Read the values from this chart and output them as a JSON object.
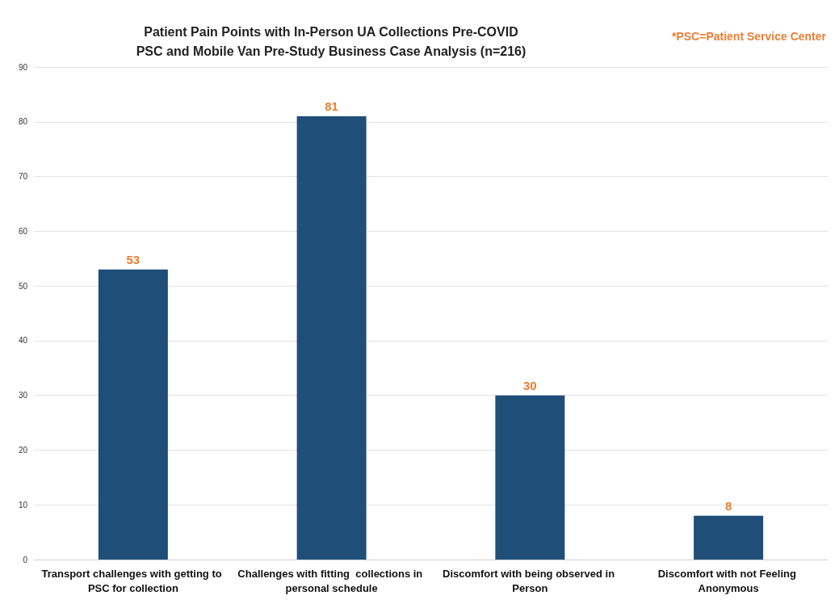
{
  "chart_data": {
    "type": "bar",
    "title": "Patient Pain Points with In-Person UA Collections Pre-COVID\nPSC and Mobile Van Pre-Study Business Case Analysis (n=216)",
    "annotations": [
      "*PSC=Patient Service Center"
    ],
    "categories": [
      "Transport challenges with getting to PSC for collection",
      "Challenges with fitting  collections in personal schedule",
      "Discomfort with being observed in Person",
      "Discomfort with not Feeling Anonymous"
    ],
    "values": [
      53,
      81,
      30,
      8
    ],
    "color": "#1f4e79",
    "ylim": [
      0,
      90
    ],
    "yticks": [
      0,
      10,
      20,
      30,
      40,
      50,
      60,
      70,
      80,
      90
    ],
    "grid": "y",
    "data_labels": true
  }
}
